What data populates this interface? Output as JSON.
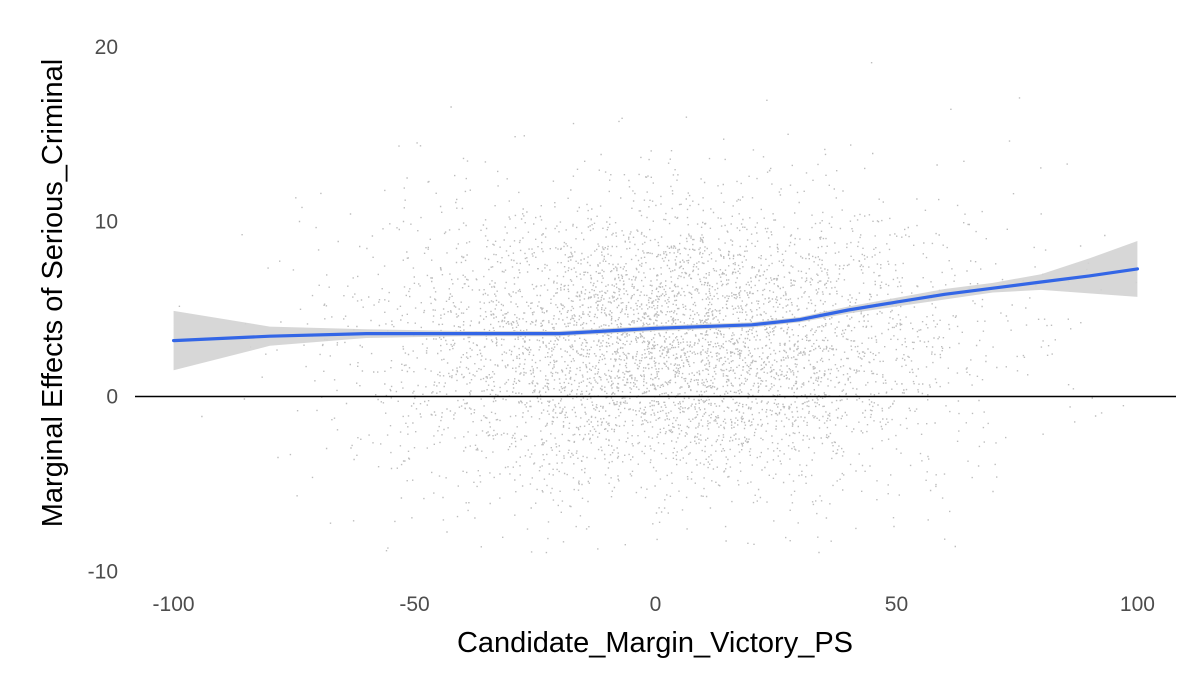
{
  "chart_data": {
    "type": "scatter",
    "title": "",
    "xlabel": "Candidate_Margin_Victory_PS",
    "ylabel": "Marginal Effects of  Serious_Criminal",
    "xlim": [
      -108,
      108
    ],
    "ylim": [
      -10.5,
      20.8
    ],
    "x_ticks": [
      -100,
      -50,
      0,
      50,
      100
    ],
    "x_tick_labels": [
      "-100",
      "-50",
      "0",
      "50",
      "100"
    ],
    "y_ticks": [
      -10,
      0,
      10,
      20
    ],
    "y_tick_labels": [
      "-10",
      "0",
      "10",
      "20"
    ],
    "grid": false,
    "legend": "none",
    "reference_line_y": 0,
    "scatter_description": "Approximately 5,000 grey points, dense near x = 0, y ≈ 3, thinning out toward the edges (x from -100 to 100, y from -9 to 20)",
    "point_color": "#bdbdbd",
    "smooth": {
      "color": "#3366e6",
      "band_color": "#d3d3d3",
      "x": [
        -100,
        -80,
        -60,
        -40,
        -20,
        0,
        20,
        30,
        40,
        50,
        60,
        70,
        80,
        90,
        100
      ],
      "y": [
        3.2,
        3.45,
        3.6,
        3.6,
        3.6,
        3.9,
        4.1,
        4.4,
        4.95,
        5.4,
        5.85,
        6.2,
        6.55,
        6.9,
        7.3
      ],
      "ci_lower": [
        1.5,
        2.9,
        3.35,
        3.45,
        3.45,
        3.75,
        3.95,
        4.25,
        4.75,
        5.15,
        5.55,
        5.95,
        6.1,
        5.9,
        5.7
      ],
      "ci_upper": [
        4.9,
        4.0,
        3.85,
        3.75,
        3.75,
        4.05,
        4.25,
        4.55,
        5.15,
        5.65,
        6.15,
        6.5,
        7.0,
        7.9,
        8.9
      ]
    }
  }
}
